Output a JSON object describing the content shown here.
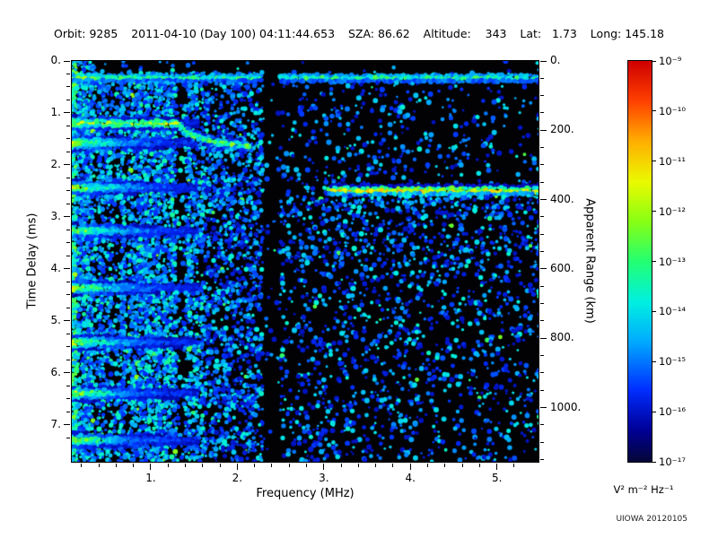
{
  "header": {
    "items": [
      "Orbit: 9285",
      "2011-04-10 (Day 100) 04:11:44.653",
      "SZA: 86.62",
      "Altitude:    343",
      "Lat:   1.73",
      "Long: 145.18"
    ]
  },
  "footer": {
    "credit": "UIOWA 20120105"
  },
  "chart_data": {
    "type": "heatmap",
    "title": "",
    "xlabel": "Frequency (MHz)",
    "ylabel": "Time Delay (ms)",
    "y2label": "Apparent Range (km)",
    "x_range": [
      0.088,
      5.48
    ],
    "y_range": [
      0,
      7.71
    ],
    "y2_range_km": [
      0,
      1156
    ],
    "km_per_ms": 150,
    "x_ticks": [
      1,
      2,
      3,
      4,
      5
    ],
    "x_tick_labels": [
      "1.",
      "2.",
      "3.",
      "4.",
      "5."
    ],
    "x_minor_step": 0.2,
    "y_ticks": [
      0,
      1,
      2,
      3,
      4,
      5,
      6,
      7
    ],
    "y_tick_labels": [
      "0.",
      "1.",
      "2.",
      "3.",
      "4.",
      "5.",
      "6.",
      "7."
    ],
    "y_minor_step": 0.25,
    "y2_ticks_km": [
      0,
      200,
      400,
      600,
      800,
      1000
    ],
    "y2_tick_labels": [
      "0.",
      "200.",
      "400.",
      "600.",
      "800.",
      "1000."
    ],
    "y2_minor_step_km": 50,
    "grid": false,
    "legend": false,
    "background": "#000000",
    "colormap": "rainbow",
    "colorbar": {
      "unit": "V² m⁻² Hz⁻¹",
      "max_exp": -9,
      "min_exp": -17,
      "tick_labels": [
        "10⁻⁹",
        "10⁻¹⁰",
        "10⁻¹¹",
        "10⁻¹²",
        "10⁻¹³",
        "10⁻¹⁴",
        "10⁻¹⁵",
        "10⁻¹⁶",
        "10⁻¹⁷"
      ]
    },
    "features": {
      "surface_reflection_delay_ms": 0.33,
      "plasma_harmonic_delays_ms": [
        1.21,
        1.59,
        2.45,
        3.28,
        4.38,
        5.43,
        6.41,
        7.31
      ],
      "diffuse_echo_bands_ms": [
        [
          1.35,
          1.8
        ],
        [
          2.25,
          2.75
        ],
        [
          3.15,
          3.55
        ],
        [
          4.25,
          4.75
        ],
        [
          5.3,
          5.65
        ],
        [
          6.2,
          6.7
        ],
        [
          7.15,
          7.5
        ]
      ],
      "ionosphere_trace": [
        [
          0.12,
          1.21
        ],
        [
          1.32,
          1.22
        ],
        [
          1.45,
          1.42
        ],
        [
          1.67,
          1.55
        ],
        [
          1.95,
          1.62
        ],
        [
          2.18,
          1.66
        ]
      ],
      "ground_echo": {
        "f_start": 3.05,
        "f_end": 5.46,
        "delay_ms": 2.5
      },
      "rf_gap_mhz": [
        2.3,
        2.47
      ],
      "noise_stripe_band_mhz": [
        0.088,
        1.6
      ],
      "seed_note": "speckle texture is stochastic",
      "seed": 9285
    }
  }
}
